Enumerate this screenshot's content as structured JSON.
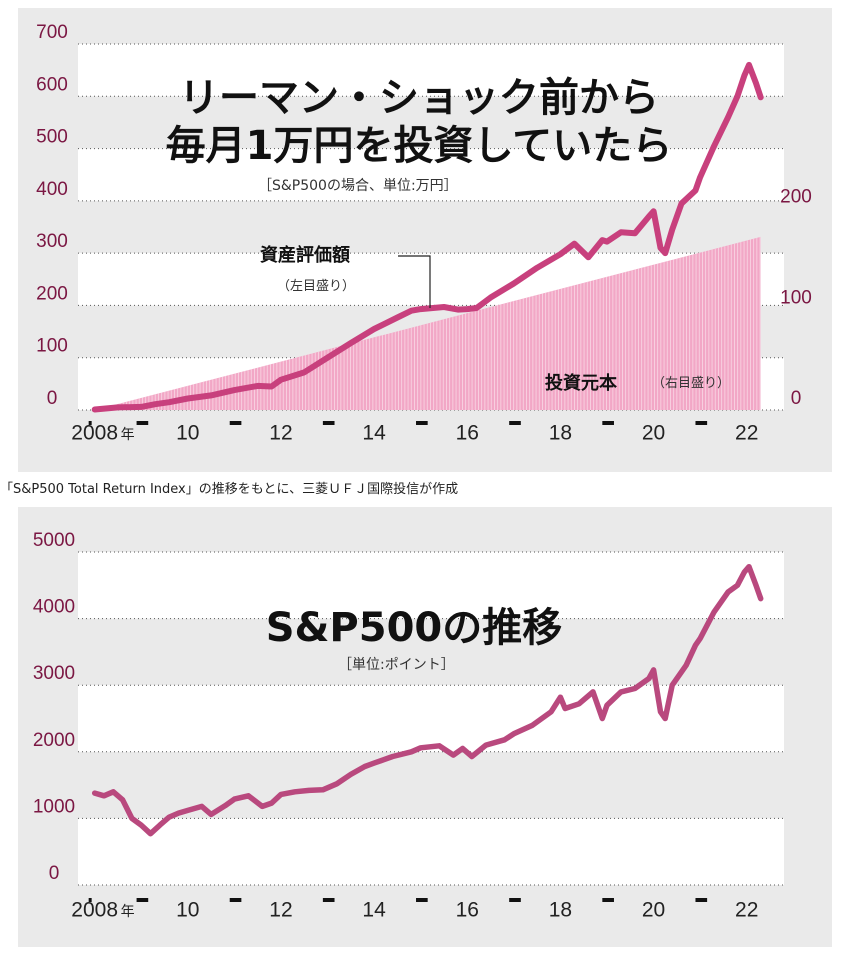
{
  "chart_data": [
    {
      "type": "area",
      "title": "リーマン・ショック前から\n毎月1万円を投資していたら",
      "subtitle": "［S&P500の場合、単位:万円］",
      "x_tick_labels": [
        "2008",
        "10",
        "12",
        "14",
        "16",
        "18",
        "20",
        "22"
      ],
      "x_first_suffix": "年",
      "y_left_ticks": [
        0,
        100,
        200,
        300,
        400,
        500,
        600,
        700
      ],
      "y_right_ticks": [
        0,
        100,
        200
      ],
      "ylim": [
        0,
        700
      ],
      "xlim": [
        2007.9,
        2022.5
      ],
      "grid": true,
      "series": [
        {
          "name": "資産評価額",
          "sub": "（左目盛り）",
          "color": "#c8407d",
          "x": [
            2008.0,
            2008.5,
            2009.0,
            2009.3,
            2009.6,
            2010.0,
            2010.5,
            2011.0,
            2011.5,
            2011.8,
            2012.0,
            2012.5,
            2013.0,
            2013.5,
            2014.0,
            2014.5,
            2014.8,
            2015.0,
            2015.5,
            2015.8,
            2016.0,
            2016.2,
            2016.5,
            2017.0,
            2017.5,
            2018.0,
            2018.3,
            2018.6,
            2018.9,
            2019.0,
            2019.3,
            2019.6,
            2019.9,
            2020.0,
            2020.15,
            2020.25,
            2020.4,
            2020.6,
            2020.9,
            2021.0,
            2021.3,
            2021.6,
            2021.8,
            2021.95,
            2022.05,
            2022.2,
            2022.3
          ],
          "values": [
            1,
            5,
            6,
            11,
            15,
            22,
            28,
            38,
            46,
            45,
            58,
            72,
            100,
            128,
            155,
            177,
            190,
            193,
            197,
            192,
            193,
            195,
            215,
            242,
            272,
            298,
            318,
            292,
            325,
            322,
            340,
            338,
            370,
            380,
            310,
            300,
            345,
            395,
            420,
            445,
            505,
            560,
            600,
            640,
            660,
            625,
            598
          ]
        },
        {
          "name": "投資元本",
          "sub": "（右目盛り）",
          "color": "#f2a7c6",
          "x": [
            2008.0,
            2022.3
          ],
          "values": [
            0,
            172
          ]
        }
      ]
    },
    {
      "type": "line",
      "title": "S&P500の推移",
      "subtitle": "［単位:ポイント］",
      "x_tick_labels": [
        "2008",
        "10",
        "12",
        "14",
        "16",
        "18",
        "20",
        "22"
      ],
      "x_first_suffix": "年",
      "y_ticks": [
        0,
        1000,
        2000,
        3000,
        4000,
        5000
      ],
      "ylim": [
        0,
        5000
      ],
      "xlim": [
        2007.9,
        2022.5
      ],
      "grid": true,
      "series": [
        {
          "color": "#b9497e",
          "x": [
            2008.0,
            2008.2,
            2008.4,
            2008.6,
            2008.8,
            2009.0,
            2009.2,
            2009.4,
            2009.6,
            2009.8,
            2010.0,
            2010.3,
            2010.5,
            2010.8,
            2011.0,
            2011.3,
            2011.6,
            2011.8,
            2012.0,
            2012.3,
            2012.6,
            2012.9,
            2013.2,
            2013.5,
            2013.8,
            2014.0,
            2014.4,
            2014.8,
            2015.0,
            2015.4,
            2015.7,
            2015.9,
            2016.1,
            2016.4,
            2016.8,
            2017.0,
            2017.4,
            2017.8,
            2018.0,
            2018.1,
            2018.4,
            2018.7,
            2018.9,
            2019.0,
            2019.3,
            2019.6,
            2019.9,
            2020.0,
            2020.15,
            2020.25,
            2020.4,
            2020.7,
            2020.9,
            2021.0,
            2021.3,
            2021.6,
            2021.8,
            2021.95,
            2022.05,
            2022.2,
            2022.3
          ],
          "values": [
            1380,
            1340,
            1400,
            1280,
            1000,
            900,
            770,
            900,
            1020,
            1080,
            1120,
            1180,
            1060,
            1190,
            1290,
            1340,
            1180,
            1230,
            1360,
            1400,
            1420,
            1430,
            1520,
            1660,
            1780,
            1830,
            1930,
            2000,
            2060,
            2090,
            1950,
            2050,
            1930,
            2100,
            2180,
            2270,
            2400,
            2600,
            2820,
            2650,
            2720,
            2900,
            2500,
            2700,
            2900,
            2950,
            3100,
            3230,
            2600,
            2500,
            3000,
            3300,
            3600,
            3700,
            4100,
            4400,
            4500,
            4700,
            4780,
            4500,
            4300
          ]
        }
      ]
    }
  ],
  "source_note": "「S&P500 Total Return Index」の推移をもとに、三菱ＵＦＪ国際投信が作成"
}
